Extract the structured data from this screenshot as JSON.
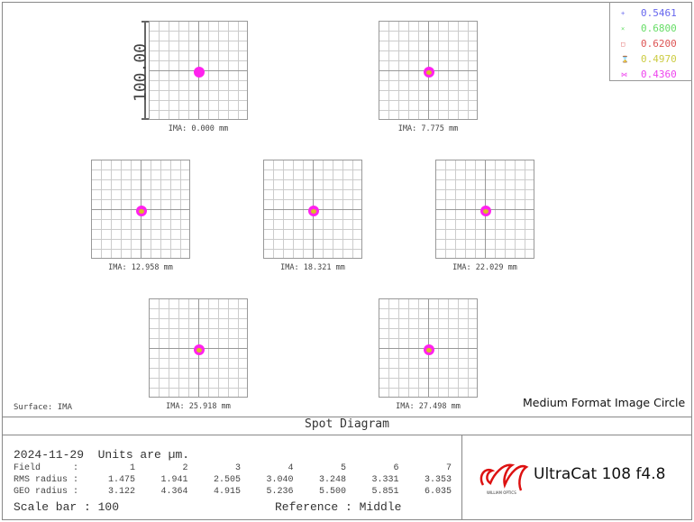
{
  "scale_label": "100.00",
  "fields": [
    {
      "label": "IMA: 0.000 mm"
    },
    {
      "label": "IMA: 7.775 mm"
    },
    {
      "label": "IMA: 12.958 mm"
    },
    {
      "label": "IMA: 18.321 mm"
    },
    {
      "label": "IMA: 22.029 mm"
    },
    {
      "label": "IMA: 25.918 mm"
    },
    {
      "label": "IMA: 27.498 mm"
    }
  ],
  "legend": [
    {
      "value": "0.5461",
      "color": "#6666ee",
      "marker": "+"
    },
    {
      "value": "0.6800",
      "color": "#66dd66",
      "marker": "×"
    },
    {
      "value": "0.6200",
      "color": "#dd5555",
      "marker": "□"
    },
    {
      "value": "0.4970",
      "color": "#cccc44",
      "marker": "⌛"
    },
    {
      "value": "0.4360",
      "color": "#ee44ee",
      "marker": "⋈"
    }
  ],
  "surface": "Surface: IMA",
  "caption": "Medium Format Image Circle",
  "title": "Spot Diagram",
  "info": {
    "date": "2024-11-29",
    "units": "Units are µm.",
    "field_label": "Field      :",
    "rms_label": "RMS radius :",
    "geo_label": "GEO radius :",
    "field_numbers": [
      "1",
      "2",
      "3",
      "4",
      "5",
      "6",
      "7"
    ],
    "rms": [
      "1.475",
      "1.941",
      "2.505",
      "3.040",
      "3.248",
      "3.331",
      "3.353"
    ],
    "geo": [
      "3.122",
      "4.364",
      "4.915",
      "5.236",
      "5.500",
      "5.851",
      "6.035"
    ],
    "scale_bar": "Scale bar  : 100",
    "reference": "Reference  : Middle"
  },
  "brand": {
    "name": "UltraCat 108 f4.8",
    "logo_text": "WILLIAM OPTICS",
    "logo_color": "#dd1111"
  }
}
